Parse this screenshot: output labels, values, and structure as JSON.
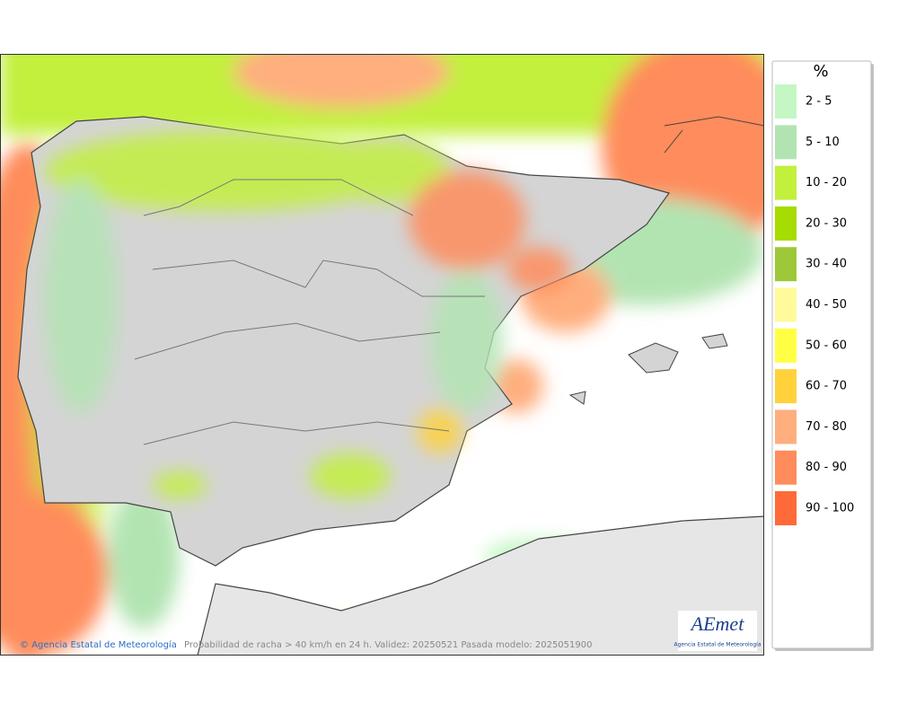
{
  "legend": {
    "title": "%",
    "items": [
      {
        "label": "2 - 5",
        "color": "#c4f7c4"
      },
      {
        "label": "5 - 10",
        "color": "#b2e4b2"
      },
      {
        "label": "10 - 20",
        "color": "#c2f03c"
      },
      {
        "label": "20 - 30",
        "color": "#a6dc00"
      },
      {
        "label": "30 - 40",
        "color": "#9cc83a"
      },
      {
        "label": "40 - 50",
        "color": "#fffa9c"
      },
      {
        "label": "50 - 60",
        "color": "#ffff44"
      },
      {
        "label": "60 - 70",
        "color": "#ffd23c"
      },
      {
        "label": "70 - 80",
        "color": "#ffae7e"
      },
      {
        "label": "80 - 90",
        "color": "#ff8c5c"
      },
      {
        "label": "90 - 100",
        "color": "#ff6a38"
      }
    ]
  },
  "footer": {
    "credit": "Agencia Estatal de Meteorología",
    "caption": "Probabilidad de racha > 40 km/h en 24 h. Validez: 20250521 Pasada modelo: 2025051900"
  },
  "logo": {
    "name": "AEmet",
    "subtitle": "Agencia Estatal de Meteorología"
  }
}
